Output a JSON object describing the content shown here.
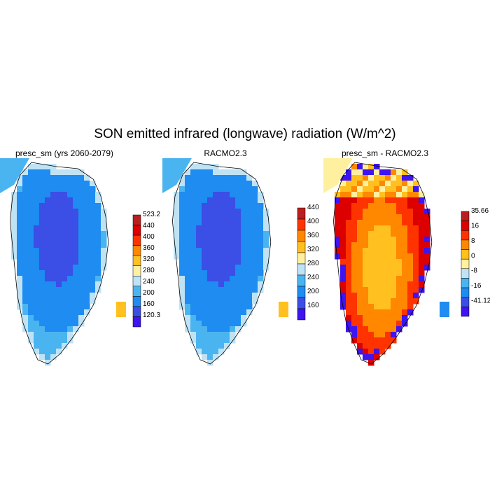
{
  "title": "SON emitted infrared (longwave) radiation (W/m^2)",
  "chart_data": [
    {
      "type": "heatmap",
      "title": "presc_sm (yrs 2060-2079)",
      "colorbar": {
        "labels": [
          "120.3",
          "160",
          "200",
          "240",
          "280",
          "320",
          "360",
          "400",
          "440",
          "523.2"
        ],
        "colors": [
          "#3e14f0",
          "#3b4ee6",
          "#1e8cf0",
          "#4ab4f0",
          "#bfe3f5",
          "#fff0a0",
          "#ffc020",
          "#ff8800",
          "#ff3300",
          "#dd0000",
          "#bb1e1e"
        ]
      }
    },
    {
      "type": "heatmap",
      "title": "RACMO2.3",
      "colorbar": {
        "labels": [
          "160",
          "200",
          "240",
          "280",
          "320",
          "360",
          "400",
          "440"
        ],
        "colors": [
          "#3e14f0",
          "#3b4ee6",
          "#1e8cf0",
          "#4ab4f0",
          "#bfe3f5",
          "#fff0a0",
          "#ffc020",
          "#ff8800",
          "#ff3300",
          "#bb1e1e"
        ]
      }
    },
    {
      "type": "heatmap",
      "title": "presc_sm - RACMO2.3",
      "colorbar": {
        "labels": [
          "-41.12",
          "-16",
          "-8",
          "0",
          "8",
          "16",
          "35.66"
        ],
        "colors": [
          "#3e14f0",
          "#3b4ee6",
          "#1e8cf0",
          "#4ab4f0",
          "#bfe3f5",
          "#fff0a0",
          "#ffc020",
          "#ff8800",
          "#ff3300",
          "#dd0000",
          "#bb1e1e"
        ]
      }
    }
  ]
}
